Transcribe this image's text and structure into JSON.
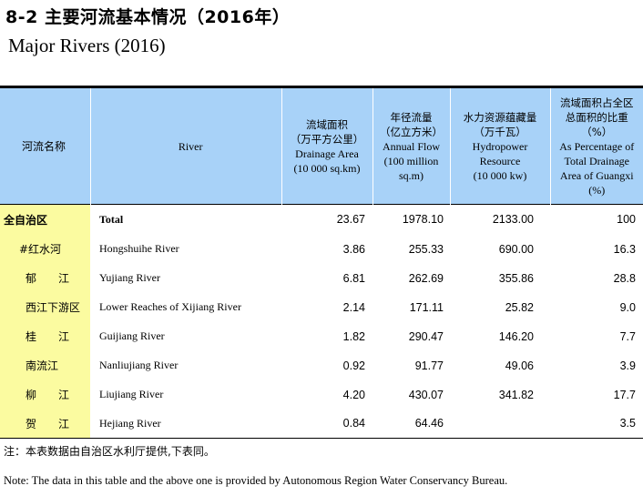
{
  "title_cn": "8-2  主要河流基本情况（2016年）",
  "title_en": "Major Rivers (2016)",
  "headers": {
    "name_cn": "河流名称",
    "name_en": "River",
    "area": [
      "流域面积",
      "（万平方公里）",
      "Drainage Area",
      "(10 000 sq.km)"
    ],
    "flow": [
      "年径流量",
      "（亿立方米）",
      "Annual Flow",
      "(100 million",
      "sq.m)"
    ],
    "hydro": [
      "水力资源蕴藏量",
      "（万千瓦）",
      "Hydropower",
      "Resource",
      "(10 000 kw)"
    ],
    "pct": [
      "流域面积占全区",
      "总面积的比重",
      "（%）",
      "As Percentage of",
      "Total Drainage",
      "Area of Guangxi",
      "(%)"
    ]
  },
  "rows": [
    {
      "cn": "全自治区",
      "en": "Total",
      "area": "23.67",
      "flow": "1978.10",
      "hydro": "2133.00",
      "pct": "100"
    },
    {
      "cn": "#红水河",
      "en": "Hongshuihe River",
      "area": "3.86",
      "flow": "255.33",
      "hydro": "690.00",
      "pct": "16.3"
    },
    {
      "cn": "郁　　江",
      "en": "Yujiang River",
      "area": "6.81",
      "flow": "262.69",
      "hydro": "355.86",
      "pct": "28.8"
    },
    {
      "cn": "西江下游区",
      "en": "Lower Reaches of Xijiang River",
      "area": "2.14",
      "flow": "171.11",
      "hydro": "25.82",
      "pct": "9.0"
    },
    {
      "cn": "桂　　江",
      "en": "Guijiang River",
      "area": "1.82",
      "flow": "290.47",
      "hydro": "146.20",
      "pct": "7.7"
    },
    {
      "cn": "南流江",
      "en": "Nanliujiang River",
      "area": "0.92",
      "flow": "91.77",
      "hydro": "49.06",
      "pct": "3.9"
    },
    {
      "cn": "柳　　江",
      "en": "Liujiang River",
      "area": "4.20",
      "flow": "430.07",
      "hydro": "341.82",
      "pct": "17.7"
    },
    {
      "cn": "贺　　江",
      "en": "Hejiang River",
      "area": "0.84",
      "flow": "64.46",
      "hydro": "",
      "pct": "3.5"
    }
  ],
  "note_cn": "注：本表数据由自治区水利厅提供,下表同。",
  "note_en": "Note: The data in this table and the above one is provided by Autonomous Region Water Conservancy Bureau.",
  "colors": {
    "header_bg": "#a8d2f8",
    "name_col_bg": "#fbfba0"
  }
}
